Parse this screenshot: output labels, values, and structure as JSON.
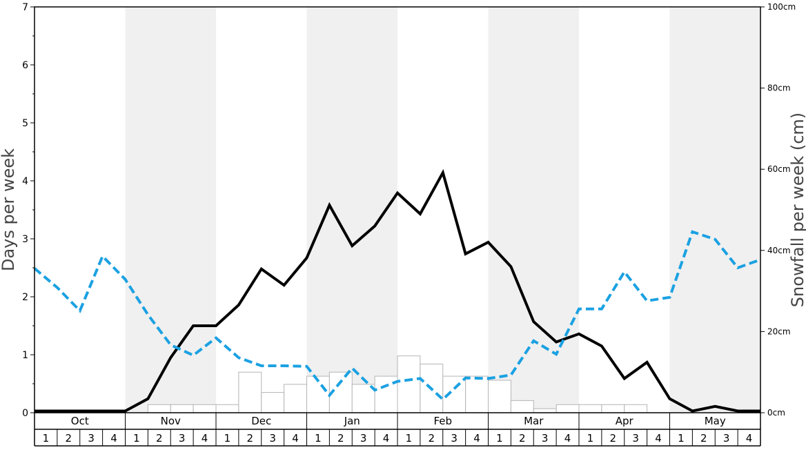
{
  "chart_data": {
    "type": "line",
    "ylabel_left": "Days per week",
    "ylabel_right": "Snowfall per week (cm)",
    "ylim_left": [
      0,
      7
    ],
    "ylim_right": [
      0,
      100
    ],
    "yticks_left": [
      "0",
      "1",
      "2",
      "3",
      "4",
      "5",
      "6",
      "7"
    ],
    "yticks_right": [
      "0cm",
      "20cm",
      "40cm",
      "60cm",
      "80cm",
      "100cm"
    ],
    "months": [
      "Oct",
      "Nov",
      "Dec",
      "Jan",
      "Feb",
      "Mar",
      "Apr",
      "May"
    ],
    "weeks": [
      "1",
      "2",
      "3",
      "4"
    ],
    "grid": false,
    "shaded_months": [
      "Nov",
      "Jan",
      "Mar",
      "May"
    ],
    "series": [
      {
        "type": "line",
        "axis": "left",
        "style": "solid",
        "color": "#000000",
        "values": [
          0.03,
          0.03,
          0.03,
          0.03,
          0.03,
          0.24,
          0.95,
          1.5,
          1.5,
          1.86,
          2.48,
          2.2,
          2.67,
          3.58,
          2.88,
          3.22,
          3.79,
          3.43,
          4.14,
          2.74,
          2.94,
          2.52,
          1.57,
          1.22,
          1.36,
          1.15,
          0.59,
          0.87,
          0.24,
          0.03,
          0.11,
          0.03,
          0.03
        ]
      },
      {
        "type": "line",
        "axis": "left",
        "style": "dashed",
        "color": "#1ba1e2",
        "values": [
          2.49,
          2.16,
          1.76,
          2.7,
          2.3,
          1.69,
          1.17,
          0.99,
          1.29,
          0.95,
          0.81,
          0.81,
          0.8,
          0.3,
          0.77,
          0.39,
          0.54,
          0.59,
          0.23,
          0.6,
          0.59,
          0.65,
          1.24,
          1.01,
          1.79,
          1.79,
          2.43,
          1.93,
          1.99,
          3.12,
          2.99,
          2.5,
          2.64
        ]
      },
      {
        "type": "bar",
        "axis": "right",
        "color": "#ffffff",
        "values": [
          0,
          0,
          0,
          0,
          0,
          2,
          2,
          2,
          2,
          10,
          5,
          7,
          9,
          10,
          7,
          9,
          14,
          12,
          9,
          9,
          8,
          3,
          1,
          2,
          2,
          2,
          2,
          0,
          0,
          0,
          0,
          0
        ]
      }
    ]
  }
}
